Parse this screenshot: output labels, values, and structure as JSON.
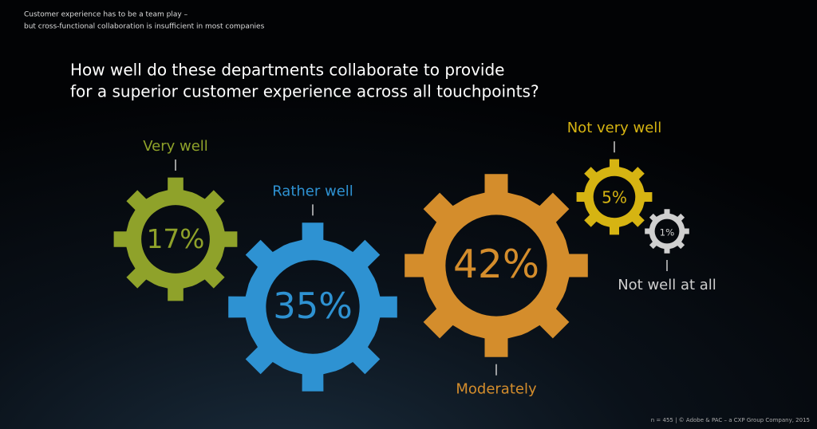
{
  "header": {
    "subtitle_lines": [
      "Customer experience has to be a team play –",
      "but cross-functional collaboration is insufficient in most companies"
    ]
  },
  "chart_data": {
    "type": "gear",
    "title_lines": [
      "How well do these departments collaborate to provide",
      "for a superior customer experience across all touchpoints?"
    ],
    "categories": [
      "Very well",
      "Rather well",
      "Moderately",
      "Not very well",
      "Not well at all"
    ],
    "values": [
      17,
      35,
      42,
      5,
      1
    ],
    "value_labels": [
      "17%",
      "35%",
      "42%",
      "5%",
      "1%"
    ],
    "colors": [
      "#8fa22a",
      "#2e92d2",
      "#d48d2c",
      "#d6b412",
      "#cfcfcf"
    ]
  },
  "footer": {
    "note": "n = 455 | © Adobe & PAC – a CXP Group Company, 2015"
  }
}
